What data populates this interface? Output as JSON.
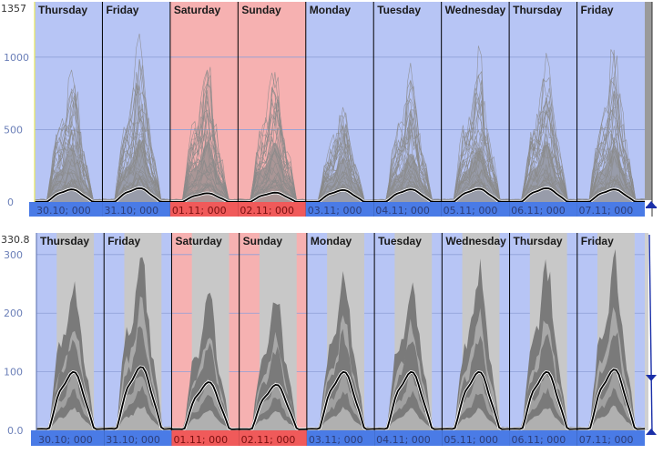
{
  "colors": {
    "weekday_bg": "#b7c5f5",
    "weekend_bg": "#f6b1b1",
    "date_bar_weekday": "#4a7be6",
    "date_bar_weekend": "#f05a5a",
    "curve_gray": "#8a8a8a",
    "band_light": "#c8c8c8",
    "band_dark": "#7a7a7a",
    "mean_line": "#000000",
    "scrollbar": "#9a9a9a",
    "marker": "#1a2fa8"
  },
  "days": [
    {
      "label": "Thursday",
      "date": "30.10; 000",
      "weekend": false
    },
    {
      "label": "Friday",
      "date": "31.10; 000",
      "weekend": false
    },
    {
      "label": "Saturday",
      "date": "01.11; 000",
      "weekend": true
    },
    {
      "label": "Sunday",
      "date": "02.11; 000",
      "weekend": true
    },
    {
      "label": "Monday",
      "date": "03.11; 000",
      "weekend": false
    },
    {
      "label": "Tuesday",
      "date": "04.11; 000",
      "weekend": false
    },
    {
      "label": "Wednesday",
      "date": "05.11; 000",
      "weekend": false
    },
    {
      "label": "Thursday",
      "date": "06.11; 000",
      "weekend": false
    },
    {
      "label": "Friday",
      "date": "07.11; 000",
      "weekend": false
    }
  ],
  "chart_data": [
    {
      "type": "line",
      "y_max_label": "1357",
      "yticks": [
        "1000",
        "500",
        "0"
      ],
      "ylim": [
        0,
        1357
      ],
      "peak_max": [
        930,
        1050,
        880,
        900,
        700,
        880,
        950,
        1040,
        1010
      ],
      "peak_p95": [
        700,
        800,
        780,
        760,
        560,
        620,
        700,
        740,
        720
      ],
      "mean_peak": [
        100,
        110,
        70,
        75,
        95,
        100,
        105,
        110,
        100
      ]
    },
    {
      "type": "area",
      "y_max_label": "330.8",
      "yticks": [
        "300",
        "200",
        "100",
        "0.0"
      ],
      "ylim": [
        0,
        330.8
      ],
      "band_top": [
        260,
        305,
        230,
        225,
        260,
        260,
        275,
        280,
        290
      ],
      "band_dark_top": [
        175,
        190,
        160,
        150,
        175,
        170,
        170,
        180,
        185
      ],
      "mean_peak": [
        115,
        125,
        95,
        90,
        115,
        115,
        115,
        115,
        120
      ]
    }
  ]
}
